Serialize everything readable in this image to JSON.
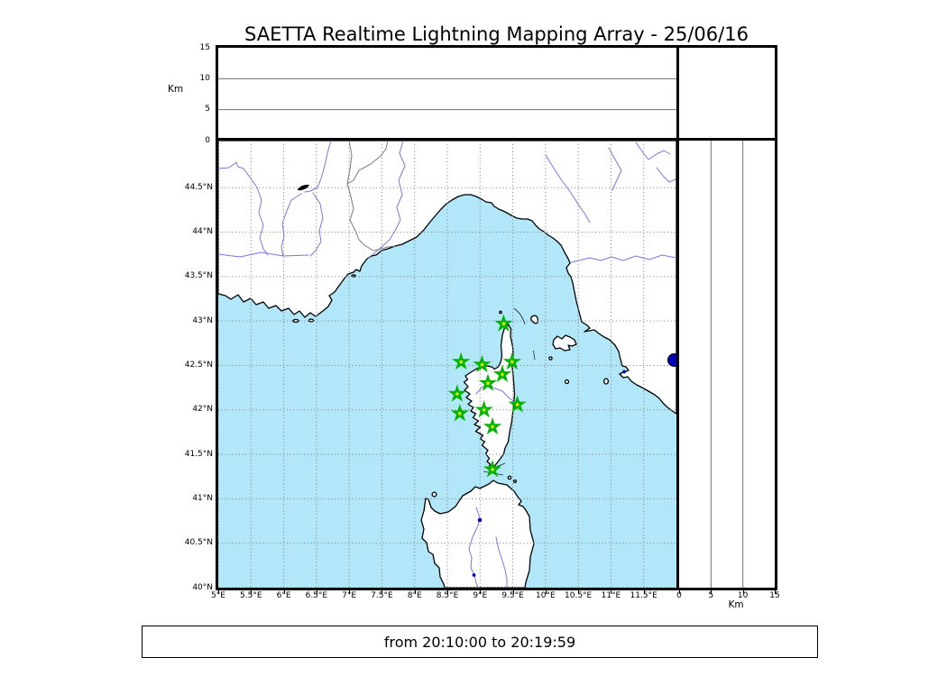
{
  "title": "SAETTA Realtime Lightning Mapping Array - 25/06/16",
  "footer": {
    "text": "from 20:10:00 to 20:19:59"
  },
  "colors": {
    "sea": "#b1e7f8",
    "land": "#ffffff",
    "coast": "#000000",
    "river": "#7878dc",
    "border_line": "#7a7a7a",
    "grid_dotted": "#8a8a8a",
    "panel_grid": "#6f6f6f",
    "star_fill": "#ffff00",
    "star_stroke": "#00b400",
    "lake": "#0000bb"
  },
  "top_panel": {
    "axis_label": "Km",
    "range": [
      0,
      15
    ],
    "tick_values": [
      0,
      5,
      10,
      15
    ],
    "tick_labels": [
      "0",
      "5",
      "10",
      "15"
    ],
    "gridlines": [
      5,
      10
    ]
  },
  "right_panel": {
    "axis_label": "Km",
    "range": [
      0,
      15
    ],
    "tick_values": [
      0,
      5,
      10,
      15
    ],
    "tick_labels": [
      "0",
      "5",
      "10",
      "15"
    ],
    "gridlines": [
      5,
      10
    ]
  },
  "map": {
    "extent": {
      "lon_min": 5,
      "lon_max": 12,
      "lat_min": 40,
      "lat_max": 45.03
    },
    "lon_ticks": {
      "labels": [
        "5°E",
        "5.5°E",
        "6°E",
        "6.5°E",
        "7°E",
        "7.5°E",
        "8°E",
        "8.5°E",
        "9°E",
        "9.5°E",
        "10°E",
        "10.5°E",
        "11°E",
        "11.5°E"
      ],
      "values": [
        5,
        5.5,
        6,
        6.5,
        7,
        7.5,
        8,
        8.5,
        9,
        9.5,
        10,
        10.5,
        11,
        11.5
      ]
    },
    "lat_ticks": {
      "labels": [
        "44.5°N",
        "44°N",
        "43.5°N",
        "43°N",
        "42.5°N",
        "42°N",
        "41.5°N",
        "41°N",
        "40.5°N",
        "40°N"
      ],
      "values": [
        44.5,
        44,
        43.5,
        43,
        42.5,
        42,
        41.5,
        41,
        40.5,
        40
      ]
    },
    "stations_lon_lat": [
      [
        9.36,
        42.97
      ],
      [
        8.71,
        42.54
      ],
      [
        9.03,
        42.51
      ],
      [
        9.49,
        42.54
      ],
      [
        9.34,
        42.4
      ],
      [
        9.12,
        42.3
      ],
      [
        8.65,
        42.18
      ],
      [
        9.57,
        42.06
      ],
      [
        9.06,
        42.0
      ],
      [
        8.69,
        41.96
      ],
      [
        9.19,
        41.81
      ],
      [
        9.19,
        41.33
      ]
    ]
  },
  "chart_data": {
    "type": "map",
    "title": "SAETTA Realtime Lightning Mapping Array - 25/06/16",
    "time_window": "from 20:10:00 to 20:19:59",
    "map_extent": {
      "lon": [
        5,
        12
      ],
      "lat": [
        40,
        45.03
      ]
    },
    "altitude_panels_km": {
      "range": [
        0,
        15
      ],
      "ticks": [
        0,
        5,
        10,
        15
      ],
      "points": []
    },
    "station_markers_lon_lat": [
      [
        9.36,
        42.97
      ],
      [
        8.71,
        42.54
      ],
      [
        9.03,
        42.51
      ],
      [
        9.49,
        42.54
      ],
      [
        9.34,
        42.4
      ],
      [
        9.12,
        42.3
      ],
      [
        8.65,
        42.18
      ],
      [
        9.57,
        42.06
      ],
      [
        9.06,
        42.0
      ],
      [
        8.69,
        41.96
      ],
      [
        9.19,
        41.81
      ],
      [
        9.19,
        41.33
      ]
    ],
    "lightning_points": [],
    "notes": "Geographic panel shows Corsica region (S. France, NW Italy, Corsica, N. Sardinia, Tuscan islands); green/yellow stars are LMA stations; empty altitude-vs-longitude panel on top and altitude-vs-latitude panel on right."
  }
}
